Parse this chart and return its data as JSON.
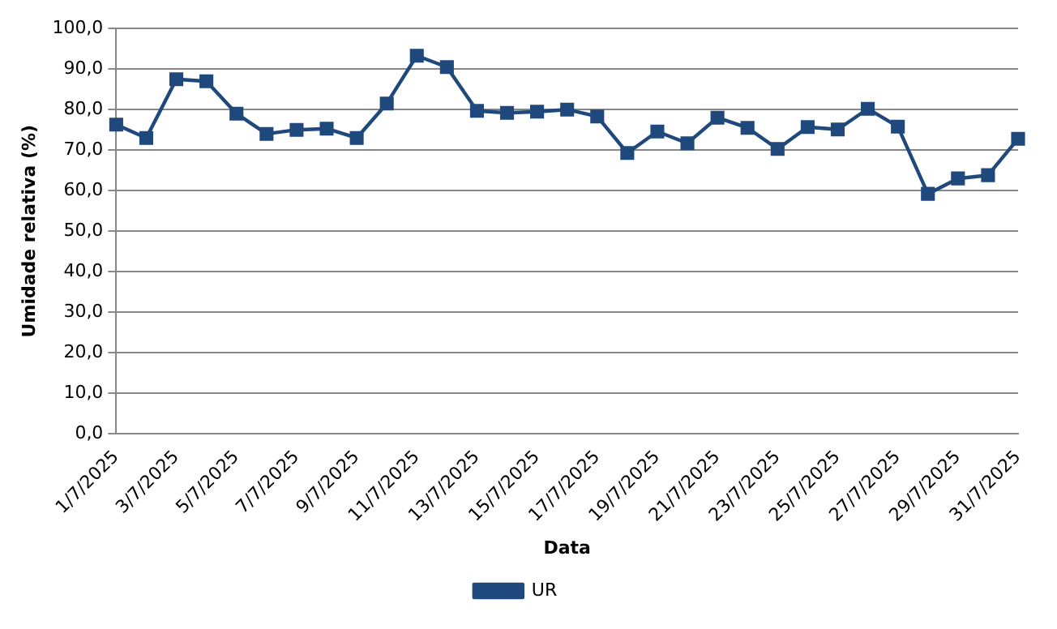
{
  "chart_data": {
    "type": "line",
    "xlabel": "Data",
    "ylabel": "Umidade relativa (%)",
    "categories": [
      "1/7/2025",
      null,
      "3/7/2025",
      null,
      "5/7/2025",
      null,
      "7/7/2025",
      null,
      "9/7/2025",
      null,
      "11/7/2025",
      null,
      "13/7/2025",
      null,
      "15/7/2025",
      null,
      "17/7/2025",
      null,
      "19/7/2025",
      null,
      "21/7/2025",
      null,
      "23/7/2025",
      null,
      "25/7/2025",
      null,
      "27/7/2025",
      null,
      "29/7/2025",
      null,
      "31/7/2025"
    ],
    "series": [
      {
        "name": "UR",
        "color": "#1f497d",
        "values": [
          76.3,
          73,
          87.5,
          87,
          79,
          74,
          75,
          75.3,
          73,
          81.5,
          93.3,
          90.5,
          79.7,
          79.2,
          79.5,
          80,
          78.3,
          69.3,
          74.6,
          71.7,
          78,
          75.5,
          70.3,
          75.7,
          75.1,
          80.2,
          75.8,
          59.2,
          63,
          63.8,
          72.8
        ]
      }
    ],
    "ylim": [
      0,
      100
    ],
    "yticks": [
      {
        "value": 0,
        "label": "0,0"
      },
      {
        "value": 10,
        "label": "10,0"
      },
      {
        "value": 20,
        "label": "20,0"
      },
      {
        "value": 30,
        "label": "30,0"
      },
      {
        "value": 40,
        "label": "40,0"
      },
      {
        "value": 50,
        "label": "50,0"
      },
      {
        "value": 60,
        "label": "60,0"
      },
      {
        "value": 70,
        "label": "70,0"
      },
      {
        "value": 80,
        "label": "80,0"
      },
      {
        "value": 90,
        "label": "90,0"
      },
      {
        "value": 100,
        "label": "100,0"
      }
    ],
    "grid": "y",
    "legend": "bottom",
    "marker": "square",
    "line_style": "solid"
  }
}
